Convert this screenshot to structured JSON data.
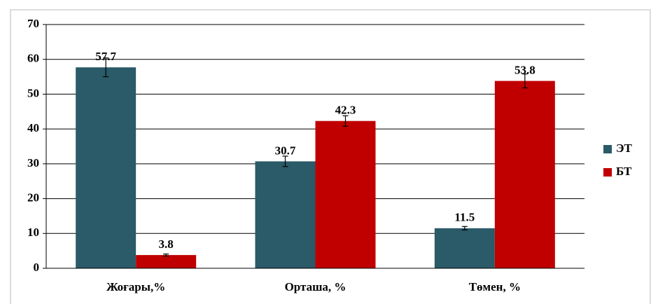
{
  "chart_data": {
    "type": "bar",
    "categories": [
      "Жоғары,%",
      "Орташа, %",
      "Төмен, %"
    ],
    "series": [
      {
        "name": "ЭТ",
        "color": "#2b5a68",
        "values": [
          57.7,
          30.7,
          11.5
        ],
        "errors": [
          2.7,
          1.5,
          0.5
        ]
      },
      {
        "name": "БТ",
        "color": "#c00000",
        "values": [
          3.8,
          42.3,
          53.8
        ],
        "errors": [
          0.3,
          1.5,
          2.0
        ]
      }
    ],
    "ylim": [
      0,
      70
    ],
    "yticks": [
      0,
      10,
      20,
      30,
      40,
      50,
      60,
      70
    ],
    "grid": true,
    "legend": "right"
  }
}
